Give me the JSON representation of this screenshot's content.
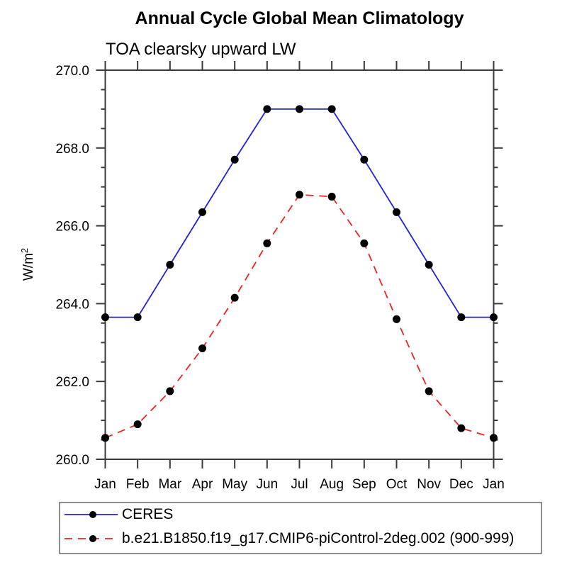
{
  "chart_data": {
    "type": "line",
    "title": "Annual Cycle Global Mean Climatology",
    "subtitle": "TOA clearsky upward LW",
    "ylabel": "W/m²",
    "ylabel_parts": {
      "base": "W/m",
      "superscript": "2"
    },
    "ylim": [
      260.0,
      270.0
    ],
    "ytick_interval_major": 2.0,
    "ytick_interval_minor": 0.5,
    "ytick_labels": [
      "260.0",
      "262.0",
      "264.0",
      "266.0",
      "268.0",
      "270.0"
    ],
    "categories": [
      "Jan",
      "Feb",
      "Mar",
      "Apr",
      "May",
      "Jun",
      "Jul",
      "Aug",
      "Sep",
      "Oct",
      "Nov",
      "Dec",
      "Jan"
    ],
    "grid": false,
    "legend_position": "bottom-left",
    "axis_color": "#3a3a3a",
    "series": [
      {
        "name": "CERES",
        "color": "#2222dd",
        "line_style": "solid",
        "marker": "filled-circle",
        "marker_color": "#000000",
        "values": [
          263.65,
          263.65,
          265.0,
          266.35,
          267.7,
          269.0,
          269.0,
          269.0,
          267.7,
          266.35,
          265.0,
          263.65,
          263.65
        ]
      },
      {
        "name": "b.e21.B1850.f19_g17.CMIP6-piControl-2deg.002 (900-999)",
        "color": "#ee2222",
        "line_style": "dashed",
        "marker": "filled-circle",
        "marker_color": "#000000",
        "values": [
          260.55,
          260.9,
          261.75,
          262.85,
          264.15,
          265.55,
          266.8,
          266.75,
          265.55,
          263.6,
          261.75,
          260.8,
          260.55
        ]
      }
    ]
  }
}
